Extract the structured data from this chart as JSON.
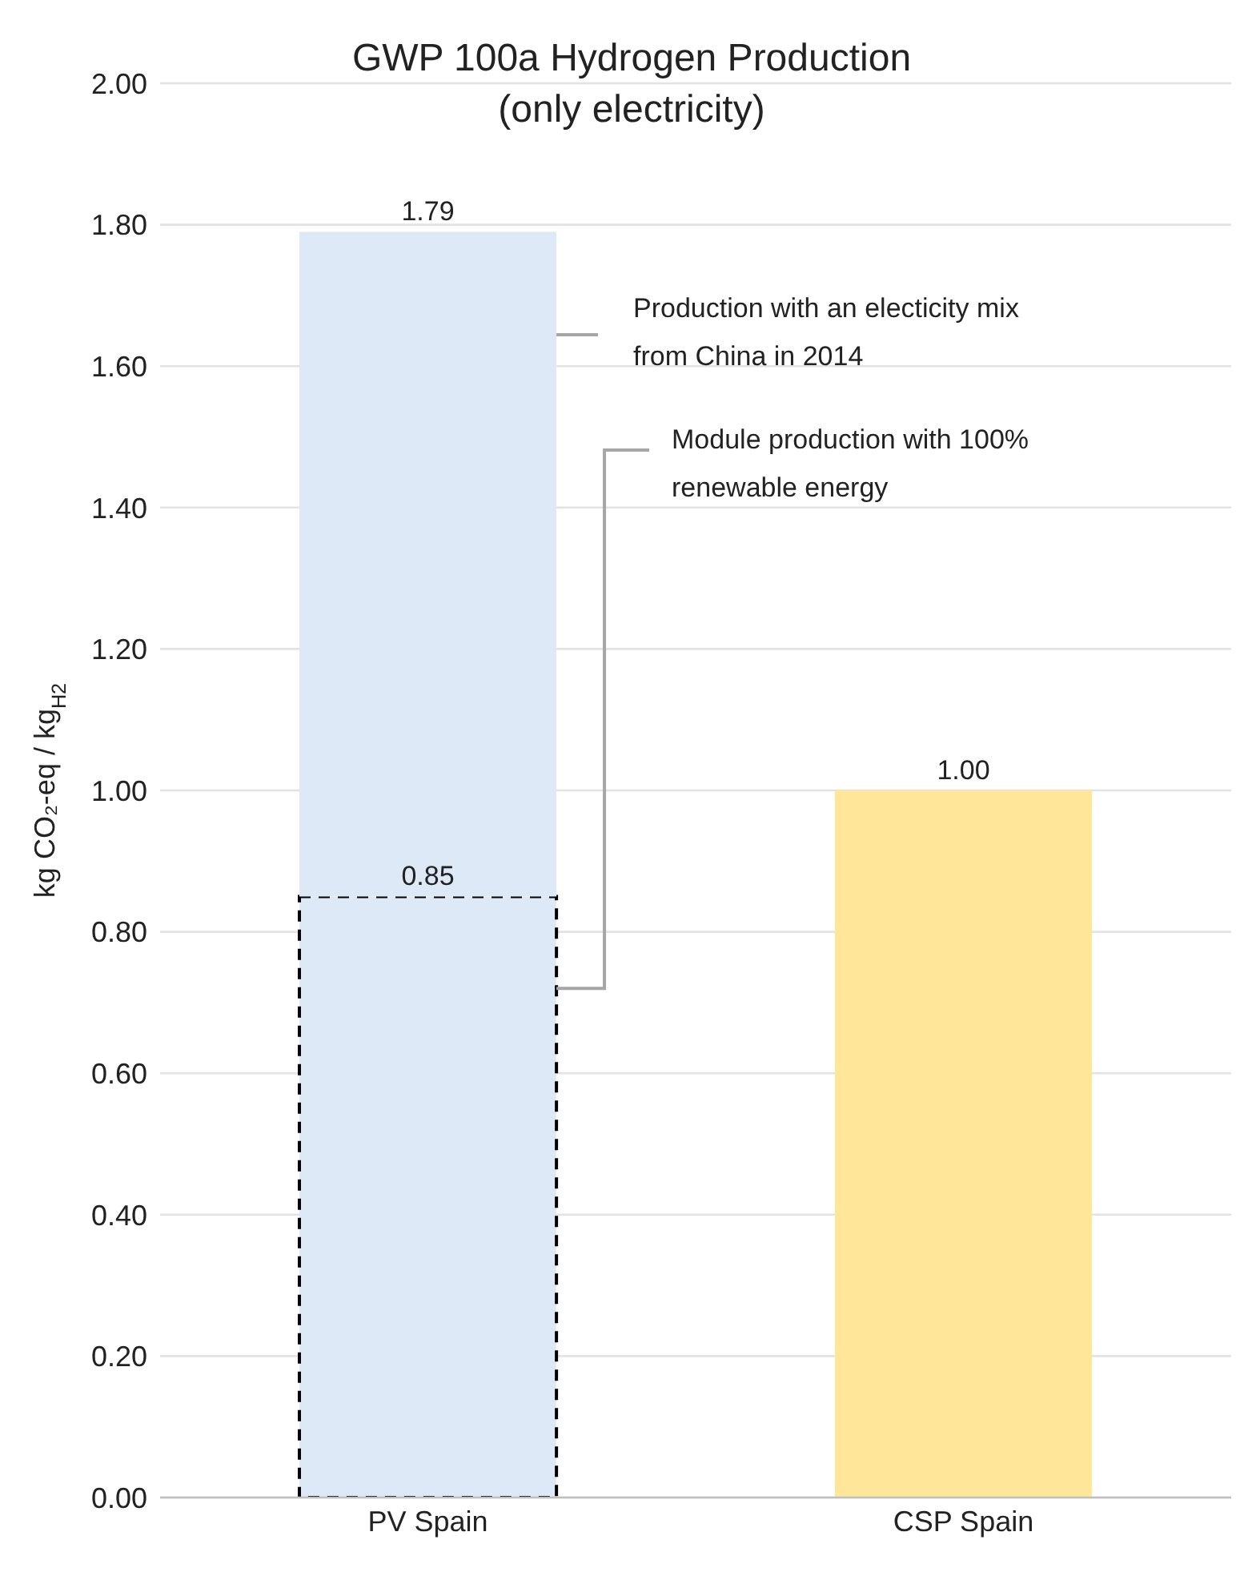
{
  "chart_data": {
    "type": "bar",
    "title": "GWP 100a Hydrogen Production",
    "subtitle": "(only electricity)",
    "ylabel": "kg CO₂-eq / kg$_{H2}$",
    "categories": [
      "PV Spain",
      "CSP Spain"
    ],
    "stacked": true,
    "series": [
      {
        "values": [
          0.85,
          null
        ],
        "color": "#dde9f6",
        "line_style": "dashed",
        "value_labels": [
          "0.85",
          null
        ]
      },
      {
        "values": [
          0.94,
          1.0
        ],
        "colors": [
          "#dde9f6",
          "#ffe699"
        ]
      }
    ],
    "totals": [
      "1.79",
      "1.00"
    ],
    "ylim": [
      0,
      2
    ],
    "yticks": [
      {
        "value": 0,
        "label": "0.00"
      },
      {
        "value": 0.2,
        "label": "0.20"
      },
      {
        "value": 0.4,
        "label": "0.40"
      },
      {
        "value": 0.6,
        "label": "0.60"
      },
      {
        "value": 0.8,
        "label": "0.80"
      },
      {
        "value": 1,
        "label": "1.00"
      },
      {
        "value": 1.2,
        "label": "1.20"
      },
      {
        "value": 1.4,
        "label": "1.40"
      },
      {
        "value": 1.6,
        "label": "1.60"
      },
      {
        "value": 1.8,
        "label": "1.80"
      },
      {
        "value": 2,
        "label": "2.00"
      }
    ],
    "grid": "y",
    "annotations": [
      "Production with an electicity mix from China in 2014",
      "Module production with 100% renewable energy"
    ]
  }
}
